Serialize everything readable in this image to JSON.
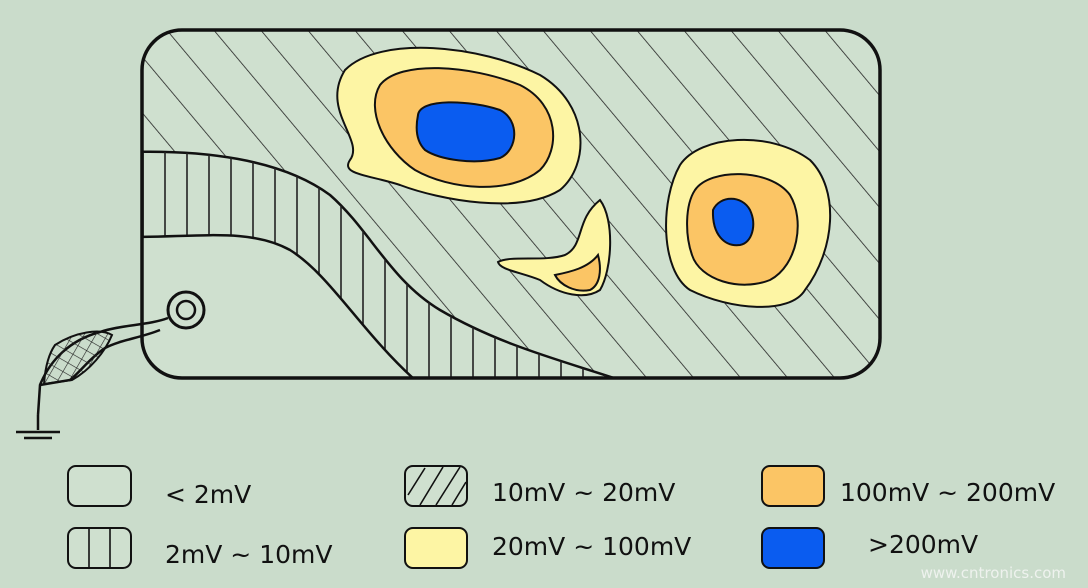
{
  "legend": [
    {
      "label": "< 2mV",
      "pattern": "none",
      "color": "#cfe0cf"
    },
    {
      "label": "2mV ~ 10mV",
      "pattern": "vertical-hatch",
      "color": "#cfe0cf"
    },
    {
      "label": "10mV ~ 20mV",
      "pattern": "diagonal-hatch",
      "color": "#cfe0cf"
    },
    {
      "label": "20mV ~ 100mV",
      "pattern": "solid",
      "color": "#fdf5a4"
    },
    {
      "label": "100mV ~ 200mV",
      "pattern": "solid",
      "color": "#fbc565"
    },
    {
      "label": ">200mV",
      "pattern": "solid",
      "color": "#0a5cf0"
    }
  ],
  "watermark": "www.cntronics.com",
  "icons": {
    "ground": "ground-symbol-icon",
    "connector": "mounting-hole-icon"
  }
}
